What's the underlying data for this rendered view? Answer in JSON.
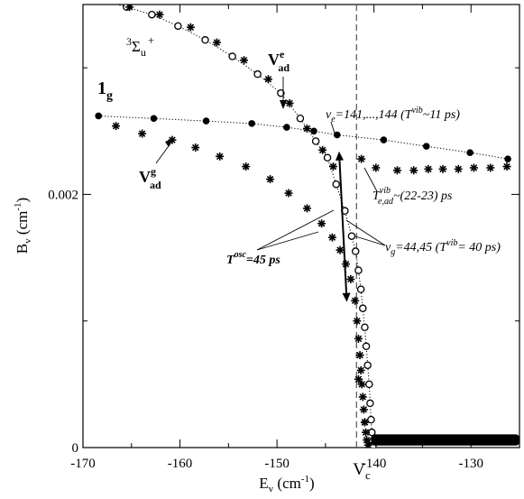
{
  "chart_data": {
    "type": "scatter",
    "title": "",
    "xlabel": {
      "base": "E",
      "sub": "v",
      "unit": " (cm",
      "sup": "-1",
      "close": ")"
    },
    "ylabel": {
      "base": "B",
      "sub": "v",
      "unit": " (cm",
      "sup": "-1",
      "close": ")"
    },
    "xlim": [
      -170,
      -125
    ],
    "ylim": [
      0,
      0.0035
    ],
    "xticks": [
      -170,
      -160,
      -150,
      -140,
      -130
    ],
    "xtick_labels": [
      "-170",
      "-160",
      "-150",
      "-140",
      "-130"
    ],
    "yticks": [
      0,
      0.002
    ],
    "ytick_labels": [
      "0",
      "0.002"
    ],
    "vc_x": -141.8,
    "vc_label": {
      "base": "V",
      "sub": "c"
    },
    "series": [
      {
        "marker": "circle-open",
        "line": "dotted",
        "points": [
          [
            -169.0,
            0.00355
          ],
          [
            -165.5,
            0.00348
          ],
          [
            -162.9,
            0.00342
          ],
          [
            -160.2,
            0.00333
          ],
          [
            -157.4,
            0.00322
          ],
          [
            -154.6,
            0.00309
          ],
          [
            -152.0,
            0.00295
          ],
          [
            -149.6,
            0.0028
          ],
          [
            -147.6,
            0.0026
          ],
          [
            -146.0,
            0.00242
          ],
          [
            -144.8,
            0.00229
          ],
          [
            -143.9,
            0.00208
          ],
          [
            -143.0,
            0.00187
          ],
          [
            -142.3,
            0.00167
          ],
          [
            -141.9,
            0.00155
          ],
          [
            -141.6,
            0.0014
          ],
          [
            -141.35,
            0.00125
          ],
          [
            -141.15,
            0.0011
          ],
          [
            -140.95,
            0.00095
          ],
          [
            -140.8,
            0.0008
          ],
          [
            -140.65,
            0.00065
          ],
          [
            -140.5,
            0.0005
          ],
          [
            -140.4,
            0.00035
          ],
          [
            -140.3,
            0.00022
          ],
          [
            -140.22,
            0.00012
          ],
          [
            -140.16,
            5e-05
          ],
          [
            -140.12,
            1e-05
          ]
        ]
      },
      {
        "marker": "circle-filled",
        "line": "dotted",
        "points": [
          [
            -168.4,
            0.00262
          ],
          [
            -162.7,
            0.0026
          ],
          [
            -157.3,
            0.00258
          ],
          [
            -152.6,
            0.00256
          ],
          [
            -149.0,
            0.00253
          ],
          [
            -146.2,
            0.0025
          ],
          [
            -143.8,
            0.00247
          ],
          [
            -139.0,
            0.00243
          ],
          [
            -134.6,
            0.00238
          ],
          [
            -130.1,
            0.00233
          ],
          [
            -126.2,
            0.00228
          ]
        ]
      },
      {
        "marker": "asterisk",
        "points": [
          [
            -165.2,
            0.00348
          ],
          [
            -162.1,
            0.00342
          ],
          [
            -158.9,
            0.00332
          ],
          [
            -156.2,
            0.0032
          ],
          [
            -153.4,
            0.00306
          ],
          [
            -150.9,
            0.00291
          ],
          [
            -148.7,
            0.00272
          ],
          [
            -146.9,
            0.00252
          ],
          [
            -145.3,
            0.00235
          ],
          [
            -144.2,
            0.00222
          ],
          [
            -166.6,
            0.00254
          ],
          [
            -163.9,
            0.00248
          ],
          [
            -160.8,
            0.00243
          ],
          [
            -158.4,
            0.00237
          ],
          [
            -155.9,
            0.0023
          ],
          [
            -153.2,
            0.00222
          ],
          [
            -150.7,
            0.00212
          ],
          [
            -148.8,
            0.00201
          ],
          [
            -146.9,
            0.00189
          ],
          [
            -145.4,
            0.00177
          ],
          [
            -144.3,
            0.00166
          ],
          [
            -143.5,
            0.00156
          ],
          [
            -142.9,
            0.00145
          ],
          [
            -142.4,
            0.00133
          ],
          [
            -141.95,
            0.00116
          ],
          [
            -141.75,
            0.001
          ],
          [
            -141.6,
            0.00086
          ],
          [
            -141.45,
            0.00073
          ],
          [
            -141.35,
            0.00061
          ],
          [
            -141.25,
            0.0005
          ],
          [
            -141.15,
            0.0004
          ],
          [
            -141.05,
            0.0003
          ],
          [
            -140.95,
            0.0002
          ],
          [
            -140.85,
            0.00012
          ],
          [
            -140.75,
            6e-05
          ],
          [
            -140.6,
            2e-05
          ],
          [
            -141.6,
            0.00054
          ],
          [
            -140.95,
            0.0002
          ],
          [
            -141.3,
            0.00228
          ],
          [
            -139.8,
            0.00221
          ],
          [
            -137.6,
            0.00219
          ],
          [
            -135.9,
            0.00219
          ],
          [
            -134.4,
            0.0022
          ],
          [
            -132.9,
            0.0022
          ],
          [
            -131.3,
            0.0022
          ],
          [
            -129.7,
            0.00221
          ],
          [
            -128.0,
            0.00221
          ],
          [
            -126.3,
            0.00222
          ]
        ]
      },
      {
        "marker": "band-filled",
        "x_from": -140.3,
        "x_to": -125,
        "y_from": 3e-05,
        "y_to": 9e-05
      }
    ],
    "arrows": {
      "osc": {
        "x1": -143.6,
        "y1": 0.00234,
        "x2": -142.8,
        "y2": 0.00115
      }
    },
    "annotations": {
      "sigma": {
        "pre": "3",
        "base": "Σ",
        "sub": "u",
        "sup": "+"
      },
      "one_g": {
        "base": "1",
        "sub": "g"
      },
      "vad_e": {
        "base": "V",
        "sup": "e",
        "sub": "ad"
      },
      "vad_g": {
        "base": "V",
        "sup": "g",
        "sub": "ad"
      },
      "ve": {
        "base": "v",
        "sub": "e",
        "text": "=141,...,144",
        "open": "  (T",
        "sup": "vib",
        "rest": "~11 ps)"
      },
      "te": {
        "base": "T",
        "sup": "vib",
        "sub": "e,ad",
        "rest": "~(22-23) ps"
      },
      "vg": {
        "base": "v",
        "sub": "g",
        "text": "=44,45",
        "open": "  (T",
        "sup": "vib",
        "rest": "= 40 ps)"
      },
      "tosc": {
        "base": "T",
        "sup": "osc",
        "rest": "=45 ps"
      }
    }
  }
}
